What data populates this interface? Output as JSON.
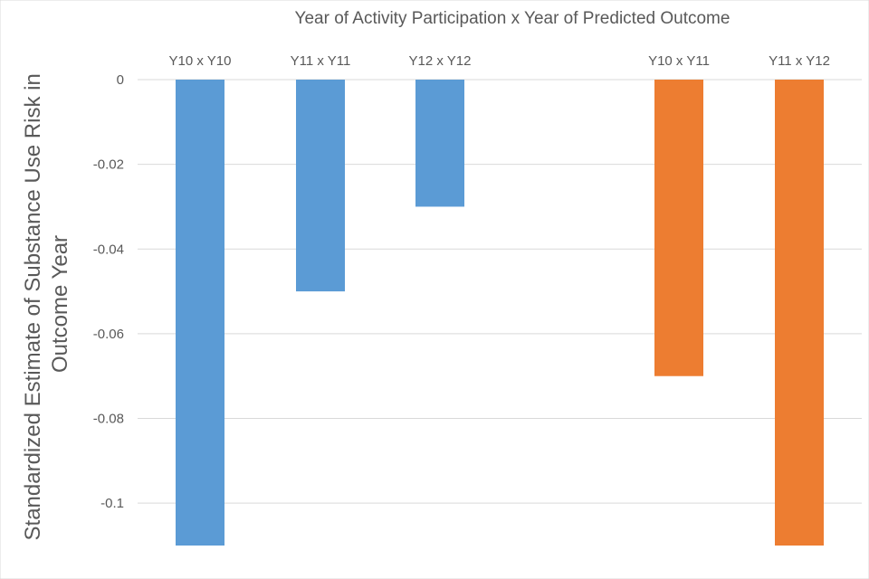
{
  "chart_data": {
    "type": "bar",
    "title": "Year of Activity Participation x Year of Predicted Outcome",
    "ylabel_lines": [
      "Standardized Estimate of Substance Use Risk in",
      "Outcome Year"
    ],
    "xlabel": "",
    "categories": [
      "Y10 x Y10",
      "Y11 x Y11",
      "Y12 x Y12",
      "Y10 x Y11",
      "Y11 x Y12"
    ],
    "series": [
      {
        "values": [
          -0.11,
          -0.05,
          -0.03,
          null,
          null
        ],
        "color": "#5b9bd5"
      },
      {
        "values": [
          null,
          null,
          null,
          -0.07,
          -0.11
        ],
        "color": "#ed7d31"
      }
    ],
    "ylim": [
      -0.11,
      0
    ],
    "yticks": [
      0,
      -0.02,
      -0.04,
      -0.06,
      -0.08,
      -0.1
    ],
    "ytick_labels": [
      "0",
      "-0.02",
      "-0.04",
      "-0.06",
      "-0.08",
      "-0.1"
    ],
    "grid": true,
    "legend": "none"
  }
}
